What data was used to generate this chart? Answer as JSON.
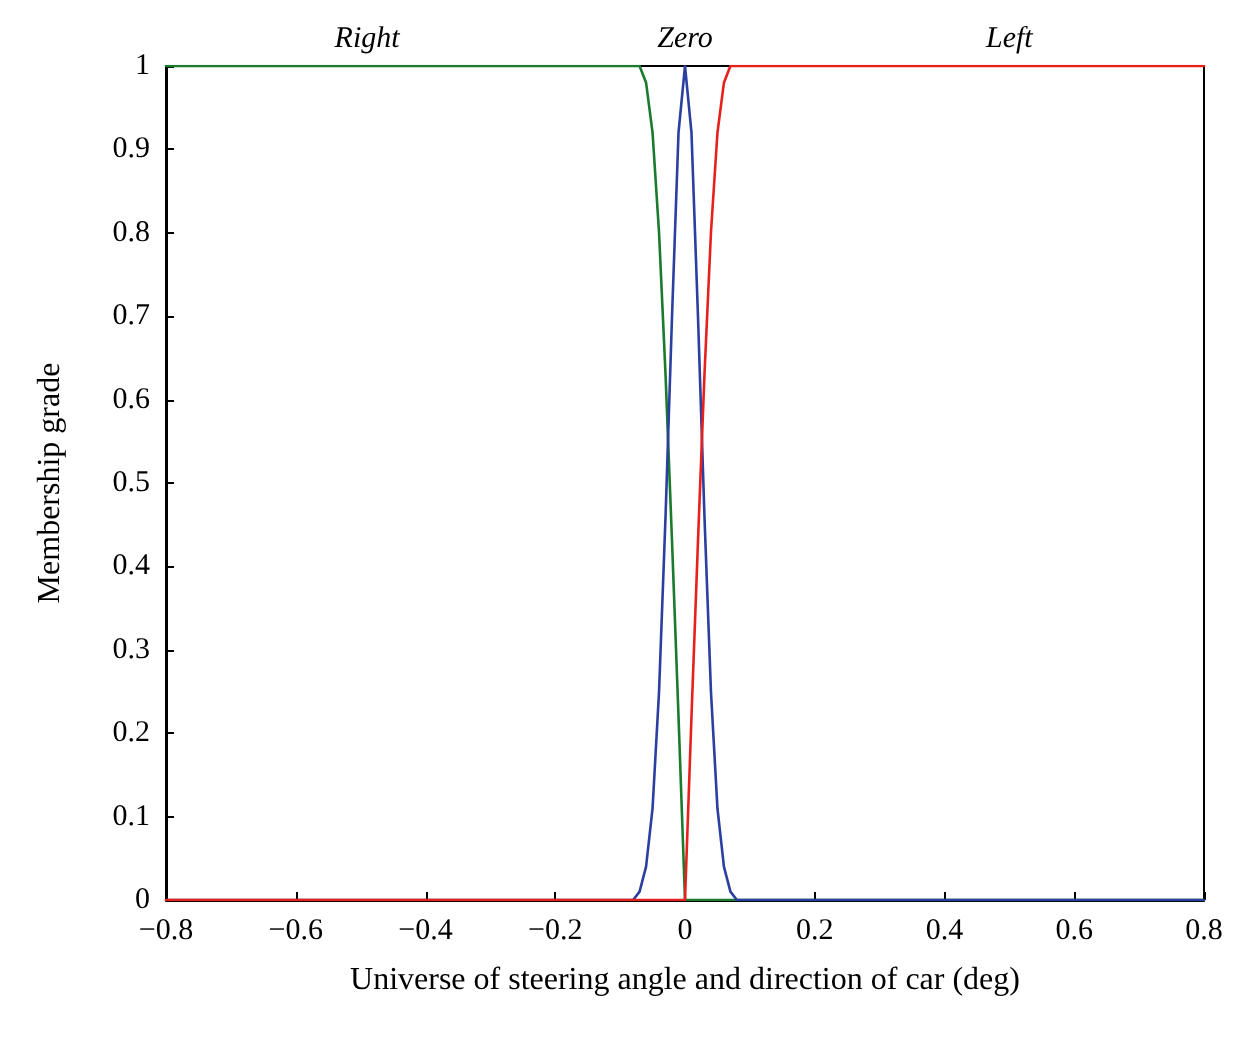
{
  "chart_data": {
    "type": "line",
    "xlabel": "Universe of steering angle and direction of car (deg)",
    "ylabel": "Membership grade",
    "xlim": [
      -0.8,
      0.8
    ],
    "xticks": [
      {
        "value": -0.8,
        "label": "−0.8"
      },
      {
        "value": -0.6,
        "label": "−0.6"
      },
      {
        "value": -0.4,
        "label": "−0.4"
      },
      {
        "value": -0.2,
        "label": "−0.2"
      },
      0,
      0.2,
      0.4,
      0.6,
      0.8
    ],
    "ylim": [
      0,
      1
    ],
    "yticks": [
      0,
      0.1,
      0.2,
      0.3,
      0.4,
      0.5,
      0.6,
      0.7,
      0.8,
      0.9,
      1
    ],
    "grid": false,
    "marker": "none",
    "line_style": "solid",
    "annotations": [
      {
        "text": "Right",
        "x": -0.49,
        "y": 1
      },
      {
        "text": "Zero",
        "x": 0,
        "y": 1
      },
      {
        "text": "Left",
        "x": 0.5,
        "y": 1
      }
    ],
    "series": [
      {
        "color": "#1a7a2e",
        "x": [
          -0.8,
          -0.07,
          -0.06,
          -0.05,
          -0.04,
          -0.03,
          -0.02,
          -0.01,
          0,
          0.8
        ],
        "values": [
          1,
          1,
          0.98,
          0.92,
          0.8,
          0.63,
          0.43,
          0.22,
          0,
          0
        ]
      },
      {
        "color": "#2a3fa0",
        "x": [
          -0.8,
          -0.08,
          -0.07,
          -0.06,
          -0.05,
          -0.04,
          -0.03,
          -0.02,
          -0.01,
          0,
          0.01,
          0.02,
          0.03,
          0.04,
          0.05,
          0.06,
          0.07,
          0.08,
          0.8
        ],
        "values": [
          0,
          0,
          0.01,
          0.04,
          0.11,
          0.25,
          0.46,
          0.7,
          0.92,
          1,
          0.92,
          0.7,
          0.46,
          0.25,
          0.11,
          0.04,
          0.01,
          0,
          0
        ]
      },
      {
        "color": "#e8201c",
        "x": [
          -0.8,
          0,
          0.01,
          0.02,
          0.03,
          0.04,
          0.05,
          0.06,
          0.07,
          0.8
        ],
        "values": [
          0,
          0,
          0.22,
          0.43,
          0.63,
          0.8,
          0.92,
          0.98,
          1,
          1
        ]
      }
    ]
  }
}
